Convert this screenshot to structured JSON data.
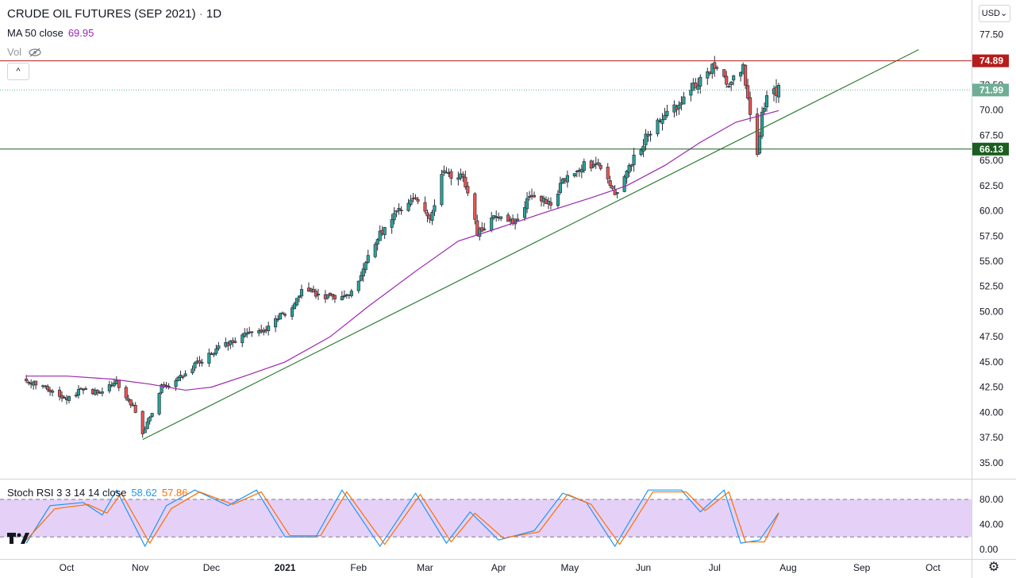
{
  "header": {
    "symbol": "CRUDE OIL FUTURES (SEP 2021)",
    "separator": "·",
    "interval": "1D",
    "ma_label": "MA 50 close",
    "ma_value": "69.95",
    "vol_label": "Vol",
    "collapse_glyph": "^",
    "currency": "USD"
  },
  "stoch_rsi": {
    "label": "Stoch RSI 3 3 14 14 close",
    "k_value": "58.62",
    "d_value": "57.86"
  },
  "colors": {
    "up": "#26a69a",
    "up_body": "#ffffff",
    "down": "#ef5350",
    "candle_outline": "#2a2e39",
    "ma": "#9c27b0",
    "trend": "#2e7d32",
    "resistance": "#b71c1c",
    "support": "#1b5e20",
    "last_price": "#6fae95",
    "stoch_k": "#2196f3",
    "stoch_d": "#ff6d00",
    "stoch_band": "#e1c9f7"
  },
  "chart_data": [
    {
      "type": "candlestick",
      "title": "CRUDE OIL FUTURES (SEP 2021)",
      "interval": "1D",
      "x_ticks": [
        "Oct",
        "Nov",
        "Dec",
        "2021",
        "Feb",
        "Mar",
        "Apr",
        "May",
        "Jun",
        "Jul",
        "Aug",
        "Sep",
        "Oct"
      ],
      "y_ticks": [
        "77.50",
        "75.00",
        "72.50",
        "70.00",
        "67.50",
        "65.00",
        "62.50",
        "60.00",
        "57.50",
        "55.00",
        "52.50",
        "50.00",
        "47.50",
        "45.00",
        "42.50",
        "40.00",
        "37.50",
        "35.00"
      ],
      "ylim": [
        33,
        79
      ],
      "price_points": [
        [
          "2020-09-14",
          43.3
        ],
        [
          "2020-10-01",
          41.5
        ],
        [
          "2020-10-08",
          42.3
        ],
        [
          "2020-10-15",
          42.0
        ],
        [
          "2020-10-22",
          43.0
        ],
        [
          "2020-10-30",
          40.2
        ],
        [
          "2020-11-02",
          37.8
        ],
        [
          "2020-11-06",
          39.8
        ],
        [
          "2020-11-10",
          42.5
        ],
        [
          "2020-11-20",
          43.8
        ],
        [
          "2020-11-30",
          45.8
        ],
        [
          "2020-12-10",
          47.0
        ],
        [
          "2020-12-18",
          48.2
        ],
        [
          "2020-12-24",
          48.3
        ],
        [
          "2021-01-04",
          50.5
        ],
        [
          "2021-01-08",
          52.2
        ],
        [
          "2021-01-20",
          51.5
        ],
        [
          "2021-01-29",
          51.8
        ],
        [
          "2021-02-05",
          55.5
        ],
        [
          "2021-02-12",
          58.5
        ],
        [
          "2021-02-24",
          61.5
        ],
        [
          "2021-03-03",
          59.0
        ],
        [
          "2021-03-08",
          63.8
        ],
        [
          "2021-03-17",
          63.2
        ],
        [
          "2021-03-23",
          58.0
        ],
        [
          "2021-03-30",
          59.2
        ],
        [
          "2021-04-07",
          58.8
        ],
        [
          "2021-04-16",
          61.8
        ],
        [
          "2021-04-23",
          60.8
        ],
        [
          "2021-04-30",
          63.5
        ],
        [
          "2021-05-07",
          64.5
        ],
        [
          "2021-05-14",
          64.2
        ],
        [
          "2021-05-20",
          61.5
        ],
        [
          "2021-05-27",
          64.8
        ],
        [
          "2021-06-04",
          68.0
        ],
        [
          "2021-06-14",
          70.2
        ],
        [
          "2021-06-22",
          72.2
        ],
        [
          "2021-07-01",
          74.5
        ],
        [
          "2021-07-06",
          72.5
        ],
        [
          "2021-07-13",
          74.2
        ],
        [
          "2021-07-16",
          70.0
        ],
        [
          "2021-07-19",
          66.0
        ],
        [
          "2021-07-21",
          69.5
        ],
        [
          "2021-07-23",
          71.5
        ],
        [
          "2021-07-28",
          71.99
        ]
      ],
      "ma50": {
        "label": "MA 50 close",
        "last": 69.95,
        "points": [
          [
            "2020-09-14",
            43.6
          ],
          [
            "2020-10-01",
            43.6
          ],
          [
            "2020-10-20",
            43.3
          ],
          [
            "2020-11-05",
            42.8
          ],
          [
            "2020-11-20",
            42.2
          ],
          [
            "2020-12-01",
            42.5
          ],
          [
            "2020-12-15",
            43.6
          ],
          [
            "2021-01-01",
            45.0
          ],
          [
            "2021-01-20",
            47.5
          ],
          [
            "2021-02-05",
            50.5
          ],
          [
            "2021-02-25",
            54.0
          ],
          [
            "2021-03-15",
            57.0
          ],
          [
            "2021-04-01",
            58.3
          ],
          [
            "2021-04-20",
            59.8
          ],
          [
            "2021-05-10",
            61.3
          ],
          [
            "2021-05-25",
            62.5
          ],
          [
            "2021-06-10",
            64.5
          ],
          [
            "2021-06-25",
            66.8
          ],
          [
            "2021-07-10",
            68.8
          ],
          [
            "2021-07-28",
            69.95
          ]
        ]
      },
      "trendline": {
        "start": [
          "2020-11-02",
          37.3
        ],
        "end": [
          "2021-09-25",
          76.0
        ]
      },
      "horizontal_levels": [
        {
          "label": "74.89",
          "value": 74.89,
          "kind": "resistance"
        },
        {
          "label": "66.13",
          "value": 66.13,
          "kind": "support"
        }
      ],
      "last_price": {
        "label": "71.99",
        "value": 71.99
      }
    },
    {
      "type": "line",
      "title": "Stoch RSI 3 3 14 14 close",
      "y_ticks": [
        "80.00",
        "40.00",
        "0.00"
      ],
      "ylim": [
        -5,
        102
      ],
      "bands": [
        20,
        80
      ],
      "series": [
        {
          "name": "K",
          "last": 58.62,
          "points": [
            [
              "2020-09-14",
              10
            ],
            [
              "2020-09-24",
              70
            ],
            [
              "2020-10-08",
              75
            ],
            [
              "2020-10-16",
              55
            ],
            [
              "2020-10-22",
              95
            ],
            [
              "2020-11-03",
              5
            ],
            [
              "2020-11-12",
              70
            ],
            [
              "2020-11-24",
              95
            ],
            [
              "2020-12-08",
              70
            ],
            [
              "2020-12-20",
              95
            ],
            [
              "2021-01-01",
              20
            ],
            [
              "2021-01-14",
              20
            ],
            [
              "2021-01-25",
              95
            ],
            [
              "2021-02-10",
              5
            ],
            [
              "2021-02-25",
              90
            ],
            [
              "2021-03-10",
              10
            ],
            [
              "2021-03-20",
              60
            ],
            [
              "2021-04-01",
              15
            ],
            [
              "2021-04-16",
              30
            ],
            [
              "2021-04-28",
              90
            ],
            [
              "2021-05-08",
              75
            ],
            [
              "2021-05-20",
              5
            ],
            [
              "2021-06-03",
              95
            ],
            [
              "2021-06-17",
              95
            ],
            [
              "2021-06-25",
              60
            ],
            [
              "2021-07-05",
              95
            ],
            [
              "2021-07-12",
              10
            ],
            [
              "2021-07-20",
              15
            ],
            [
              "2021-07-28",
              58.62
            ]
          ]
        },
        {
          "name": "D",
          "last": 57.86,
          "points": [
            [
              "2020-09-14",
              15
            ],
            [
              "2020-09-26",
              65
            ],
            [
              "2020-10-10",
              72
            ],
            [
              "2020-10-18",
              58
            ],
            [
              "2020-10-24",
              90
            ],
            [
              "2020-11-05",
              10
            ],
            [
              "2020-11-14",
              65
            ],
            [
              "2020-11-26",
              92
            ],
            [
              "2020-12-10",
              72
            ],
            [
              "2020-12-22",
              92
            ],
            [
              "2021-01-03",
              22
            ],
            [
              "2021-01-16",
              22
            ],
            [
              "2021-01-27",
              92
            ],
            [
              "2021-02-12",
              8
            ],
            [
              "2021-02-27",
              88
            ],
            [
              "2021-03-12",
              12
            ],
            [
              "2021-03-22",
              58
            ],
            [
              "2021-04-03",
              18
            ],
            [
              "2021-04-18",
              28
            ],
            [
              "2021-04-30",
              88
            ],
            [
              "2021-05-10",
              72
            ],
            [
              "2021-05-22",
              8
            ],
            [
              "2021-06-05",
              92
            ],
            [
              "2021-06-19",
              92
            ],
            [
              "2021-06-27",
              62
            ],
            [
              "2021-07-07",
              92
            ],
            [
              "2021-07-14",
              12
            ],
            [
              "2021-07-22",
              12
            ],
            [
              "2021-07-28",
              57.86
            ]
          ]
        }
      ]
    }
  ]
}
